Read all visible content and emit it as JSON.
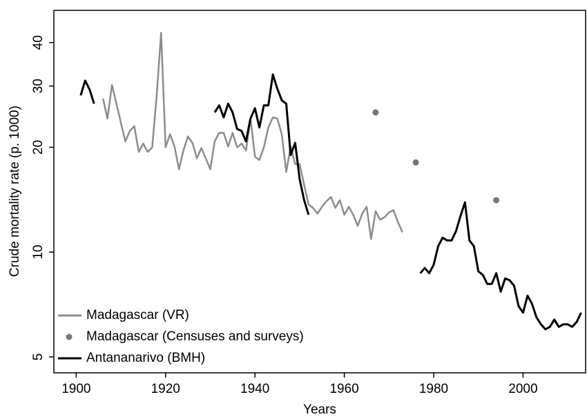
{
  "chart_data": {
    "type": "line",
    "x_label": "Years",
    "y_label": "Crude mortality rate (p. 1000)",
    "xlim": [
      1895,
      2014
    ],
    "xticks": [
      1900,
      1920,
      1940,
      1960,
      1980,
      2000
    ],
    "ylim": [
      4.5,
      49.5
    ],
    "yticks": [
      5,
      10,
      20,
      30,
      40
    ],
    "y_scale": "log",
    "legend": "lower left",
    "series": [
      {
        "name": "Madagascar (VR)",
        "color": "#8c8c8c",
        "style": "line",
        "x": [
          1906,
          1907,
          1908,
          1909,
          1910,
          1911,
          1912,
          1913,
          1914,
          1915,
          1916,
          1917,
          1918,
          1919,
          1920,
          1921,
          1922,
          1923,
          1924,
          1925,
          1926,
          1927,
          1928,
          1929,
          1930,
          1931,
          1932,
          1933,
          1934,
          1935,
          1936,
          1937,
          1938,
          1939,
          1940,
          1941,
          1942,
          1943,
          1944,
          1945,
          1946,
          1947,
          1948,
          1949,
          1950,
          1951,
          1952,
          1953,
          1954,
          1955,
          1956,
          1957,
          1958,
          1959,
          1960,
          1961,
          1962,
          1963,
          1964,
          1965,
          1966,
          1967,
          1968,
          1969,
          1970,
          1971,
          1972,
          1973
        ],
        "values": [
          27.6,
          24.2,
          30.2,
          26.7,
          23.5,
          20.8,
          22.3,
          23.0,
          19.4,
          20.5,
          19.4,
          20,
          28,
          42.7,
          20,
          21.8,
          20.1,
          17.3,
          19.6,
          21.5,
          20.6,
          18.6,
          19.9,
          18.6,
          17.3,
          20.8,
          22,
          22,
          20.1,
          22,
          20,
          20.5,
          19.6,
          24.2,
          18.8,
          18.4,
          20,
          22.8,
          24.4,
          24.2,
          21.8,
          17,
          20.1,
          17.9,
          17.9,
          15.6,
          13.7,
          13.4,
          12.9,
          13.5,
          14,
          14.4,
          13.4,
          14.1,
          12.8,
          13.5,
          12.8,
          11.9,
          12.9,
          13.5,
          10.9,
          13.1,
          12.4,
          12.6,
          13,
          13.2,
          12.2,
          11.4
        ]
      },
      {
        "name": "Madagascar (Censuses and surveys)",
        "color": "#777777",
        "style": "points",
        "x": [
          1967,
          1976,
          1994
        ],
        "values": [
          25.2,
          18.1,
          14.1
        ]
      },
      {
        "name": "Antananarivo (BMH)",
        "color": "#000000",
        "style": "line",
        "x": [
          1901,
          1902,
          1903,
          1904,
          null,
          1931,
          1932,
          1933,
          1934,
          1935,
          1936,
          1937,
          1938,
          1939,
          1940,
          1941,
          1942,
          1943,
          1944,
          1945,
          1946,
          1947,
          1948,
          1949,
          1950,
          1951,
          1952,
          null,
          1977,
          1978,
          1979,
          1980,
          1981,
          1982,
          1983,
          1984,
          1985,
          1986,
          1987,
          1988,
          1989,
          1990,
          1991,
          1992,
          1993,
          1994,
          1995,
          1996,
          1997,
          1998,
          1999,
          2000,
          2001,
          2002,
          2003,
          2004,
          2005,
          2006,
          2007,
          2008,
          2009,
          2010,
          2011,
          2012,
          2013
        ],
        "values": [
          28.2,
          31.1,
          29.3,
          26.7,
          null,
          25.2,
          26.4,
          24.4,
          26.7,
          25.2,
          22.6,
          22.3,
          20.8,
          24.2,
          25.9,
          22.8,
          26.4,
          26.4,
          32.4,
          29.5,
          27.3,
          26.7,
          19,
          20.6,
          16.2,
          14.1,
          12.8,
          null,
          8.7,
          9.0,
          8.7,
          9.2,
          10.4,
          11,
          10.8,
          10.8,
          11.5,
          12.7,
          13.9,
          10.8,
          10.4,
          8.8,
          8.6,
          8.1,
          8.1,
          8.7,
          7.7,
          8.4,
          8.3,
          8,
          7,
          6.7,
          7.5,
          7.1,
          6.5,
          6.2,
          6.0,
          6.1,
          6.4,
          6.1,
          6.2,
          6.2,
          6.1,
          6.3,
          6.7
        ]
      }
    ]
  }
}
